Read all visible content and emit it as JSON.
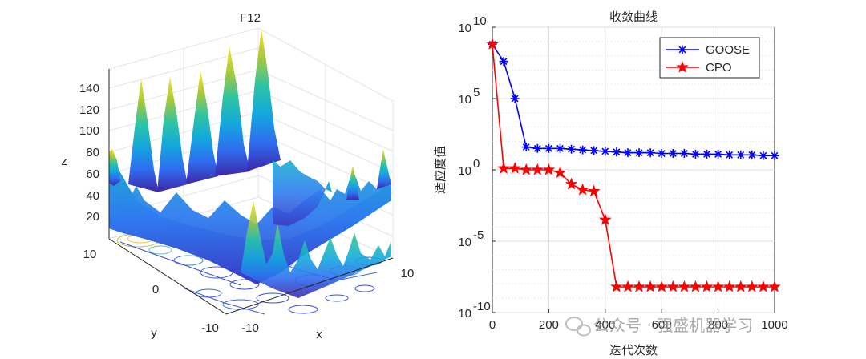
{
  "chart_data": [
    {
      "type": "surface3d",
      "title": "F12",
      "xlabel": "x",
      "ylabel": "y",
      "zlabel": "z",
      "x_ticks": [
        "-10",
        "10"
      ],
      "y_ticks": [
        "10",
        "0",
        "-10"
      ],
      "z_ticks": [
        "20",
        "40",
        "60",
        "80",
        "100",
        "120",
        "140"
      ],
      "zlim": [
        0,
        150
      ],
      "colormap": "parula",
      "has_contour": true
    },
    {
      "type": "line",
      "title": "收敛曲线",
      "xlabel": "迭代次数",
      "ylabel": "适应度值",
      "yscale": "log",
      "xlim": [
        0,
        1000
      ],
      "ylim_exp": [
        -10,
        10
      ],
      "x_ticks": [
        "0",
        "200",
        "400",
        "600",
        "800",
        "1000"
      ],
      "y_ticks": [
        {
          "base": "10",
          "exp": "10",
          "value_exp": 10
        },
        {
          "base": "10",
          "exp": "5",
          "value_exp": 5
        },
        {
          "base": "10",
          "exp": "0",
          "value_exp": 0
        },
        {
          "base": "10",
          "exp": "-5",
          "value_exp": -5
        },
        {
          "base": "10",
          "exp": "-10",
          "value_exp": -10
        }
      ],
      "legend_position": "top-right",
      "series": [
        {
          "name": "GOOSE",
          "color": "#0000ff",
          "marker": "asterisk",
          "x": [
            0,
            40,
            80,
            120,
            160,
            200,
            240,
            280,
            320,
            360,
            400,
            440,
            480,
            520,
            560,
            600,
            640,
            680,
            720,
            760,
            800,
            840,
            880,
            920,
            960,
            1000
          ],
          "log10_y": [
            8.8,
            7.6,
            5.0,
            1.6,
            1.5,
            1.5,
            1.5,
            1.45,
            1.4,
            1.35,
            1.3,
            1.25,
            1.2,
            1.2,
            1.2,
            1.15,
            1.15,
            1.15,
            1.1,
            1.1,
            1.1,
            1.05,
            1.05,
            1.05,
            1.0,
            1.0
          ]
        },
        {
          "name": "CPO",
          "color": "#ff0000",
          "marker": "pentagram",
          "x": [
            0,
            40,
            80,
            120,
            160,
            200,
            240,
            280,
            320,
            360,
            400,
            440,
            480,
            520,
            560,
            600,
            640,
            680,
            720,
            760,
            800,
            840,
            880,
            920,
            960,
            1000
          ],
          "log10_y": [
            8.8,
            0.1,
            0.1,
            0.0,
            0.0,
            0.0,
            -0.2,
            -1.0,
            -1.4,
            -1.5,
            -3.5,
            -8.2,
            -8.2,
            -8.2,
            -8.2,
            -8.2,
            -8.2,
            -8.2,
            -8.2,
            -8.2,
            -8.2,
            -8.2,
            -8.2,
            -8.2,
            -8.2,
            -8.2
          ]
        }
      ]
    }
  ],
  "watermark": "公众号 · 强盛机器学习"
}
